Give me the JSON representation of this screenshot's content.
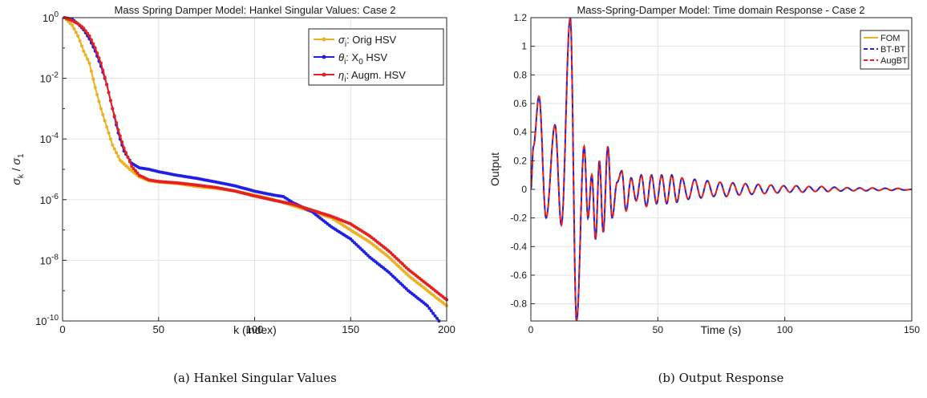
{
  "colors": {
    "orig": "#EDB120",
    "x0": "#1F1FE6",
    "augm": "#E61F1F"
  },
  "chart_data": [
    {
      "type": "line",
      "title": "Mass Spring Damper Model: Hankel Singular Values: Case 2",
      "xlabel": "k (index)",
      "ylabel": "σ_k / σ_1",
      "yscale": "log",
      "xlim": [
        0,
        200
      ],
      "ylim_exp": [
        -10,
        0
      ],
      "grid": true,
      "legend_position": "top-right",
      "x_ticks": [
        "0",
        "50",
        "100",
        "150",
        "200"
      ],
      "y_ticks": [
        {
          "base": "10",
          "exp": "0",
          "e": 0
        },
        {
          "base": "10",
          "exp": "-2",
          "e": -2
        },
        {
          "base": "10",
          "exp": "-4",
          "e": -4
        },
        {
          "base": "10",
          "exp": "-6",
          "e": -6
        },
        {
          "base": "10",
          "exp": "-8",
          "e": -8
        },
        {
          "base": "10",
          "exp": "-10",
          "e": -10
        }
      ],
      "series": [
        {
          "name": "σ_i: Orig HSV",
          "sym": "σ",
          "sub": "i",
          "rest": ": Orig HSV",
          "color_key": "orig",
          "knots": [
            [
              1,
              0
            ],
            [
              5,
              -0.25
            ],
            [
              8,
              -0.6
            ],
            [
              11,
              -1.1
            ],
            [
              14,
              -1.5
            ],
            [
              17,
              -2.3
            ],
            [
              20,
              -3.0
            ],
            [
              23,
              -3.6
            ],
            [
              26,
              -4.2
            ],
            [
              30,
              -4.7
            ],
            [
              35,
              -5.0
            ],
            [
              40,
              -5.25
            ],
            [
              45,
              -5.38
            ],
            [
              50,
              -5.42
            ],
            [
              60,
              -5.47
            ],
            [
              70,
              -5.57
            ],
            [
              80,
              -5.63
            ],
            [
              90,
              -5.72
            ],
            [
              100,
              -5.85
            ],
            [
              110,
              -6.0
            ],
            [
              120,
              -6.2
            ],
            [
              130,
              -6.4
            ],
            [
              140,
              -6.6
            ],
            [
              150,
              -7.0
            ],
            [
              160,
              -7.4
            ],
            [
              170,
              -7.9
            ],
            [
              180,
              -8.5
            ],
            [
              190,
              -9.0
            ],
            [
              200,
              -9.5
            ]
          ]
        },
        {
          "name": "θ_i: X_0 HSV",
          "sym": "θ",
          "sub": "i",
          "rest": ": X",
          "rest_sub": "0",
          "rest2": " HSV",
          "color_key": "x0",
          "knots": [
            [
              1,
              0
            ],
            [
              5,
              -0.05
            ],
            [
              8,
              -0.2
            ],
            [
              11,
              -0.4
            ],
            [
              14,
              -0.7
            ],
            [
              17,
              -1.1
            ],
            [
              20,
              -1.6
            ],
            [
              23,
              -2.2
            ],
            [
              26,
              -3.0
            ],
            [
              29,
              -3.8
            ],
            [
              32,
              -4.4
            ],
            [
              36,
              -4.8
            ],
            [
              40,
              -4.95
            ],
            [
              45,
              -5.0
            ],
            [
              50,
              -5.08
            ],
            [
              60,
              -5.2
            ],
            [
              70,
              -5.3
            ],
            [
              80,
              -5.42
            ],
            [
              90,
              -5.55
            ],
            [
              100,
              -5.72
            ],
            [
              110,
              -5.85
            ],
            [
              115,
              -5.9
            ],
            [
              120,
              -6.1
            ],
            [
              130,
              -6.4
            ],
            [
              140,
              -6.9
            ],
            [
              150,
              -7.3
            ],
            [
              160,
              -7.9
            ],
            [
              170,
              -8.4
            ],
            [
              180,
              -9.0
            ],
            [
              190,
              -9.5
            ],
            [
              196,
              -10
            ]
          ]
        },
        {
          "name": "η_i: Augm. HSV",
          "sym": "η",
          "sub": "i",
          "rest": ": Augm. HSV",
          "color_key": "augm",
          "knots": [
            [
              1,
              0
            ],
            [
              5,
              -0.1
            ],
            [
              8,
              -0.2
            ],
            [
              11,
              -0.35
            ],
            [
              14,
              -0.6
            ],
            [
              17,
              -1.0
            ],
            [
              20,
              -1.5
            ],
            [
              23,
              -2.2
            ],
            [
              26,
              -3.0
            ],
            [
              29,
              -3.7
            ],
            [
              32,
              -4.3
            ],
            [
              36,
              -4.9
            ],
            [
              40,
              -5.2
            ],
            [
              45,
              -5.35
            ],
            [
              50,
              -5.4
            ],
            [
              60,
              -5.45
            ],
            [
              70,
              -5.52
            ],
            [
              80,
              -5.6
            ],
            [
              90,
              -5.72
            ],
            [
              100,
              -5.88
            ],
            [
              110,
              -6.02
            ],
            [
              120,
              -6.15
            ],
            [
              130,
              -6.35
            ],
            [
              140,
              -6.55
            ],
            [
              150,
              -6.8
            ],
            [
              160,
              -7.2
            ],
            [
              170,
              -7.7
            ],
            [
              180,
              -8.3
            ],
            [
              190,
              -8.8
            ],
            [
              200,
              -9.3
            ]
          ]
        }
      ]
    },
    {
      "type": "line",
      "title": "Mass-Spring-Damper Model: Time domain Response - Case 2",
      "xlabel": "Time (s)",
      "ylabel": "Output",
      "xlim": [
        0,
        150
      ],
      "ylim": [
        -0.92,
        1.2
      ],
      "grid": true,
      "legend_position": "top-right",
      "x_ticks": [
        "0",
        "50",
        "100",
        "150"
      ],
      "y_ticks": [
        "-0.8",
        "-0.6",
        "-0.4",
        "-0.2",
        "0",
        "0.2",
        "0.4",
        "0.6",
        "0.8",
        "1",
        "1.2"
      ],
      "series": [
        {
          "name": "FOM",
          "color_key": "orig",
          "dash": false
        },
        {
          "name": "BT-BT",
          "color_key": "x0",
          "dash": true
        },
        {
          "name": "AugBT",
          "color_key": "augm",
          "dash": true
        }
      ],
      "peaks": [
        [
          0,
          0
        ],
        [
          1,
          0.3
        ],
        [
          3.2,
          0.65
        ],
        [
          6,
          -0.2
        ],
        [
          9.5,
          0.45
        ],
        [
          12,
          -0.25
        ],
        [
          15.5,
          1.2
        ],
        [
          18,
          -0.92
        ],
        [
          21,
          0.3
        ],
        [
          22.5,
          -0.2
        ],
        [
          24,
          0.1
        ],
        [
          25.5,
          -0.35
        ],
        [
          27,
          0.2
        ],
        [
          28.5,
          -0.3
        ],
        [
          30.3,
          0.3
        ],
        [
          32,
          -0.2
        ],
        [
          34,
          0.05
        ],
        [
          35.8,
          0.13
        ],
        [
          37.5,
          -0.15
        ],
        [
          39.5,
          0.08
        ],
        [
          41.5,
          -0.08
        ],
        [
          43.5,
          0.1
        ],
        [
          45.5,
          -0.12
        ],
        [
          47.5,
          0.1
        ],
        [
          49.5,
          -0.1
        ],
        [
          51.5,
          0.1
        ],
        [
          53.5,
          -0.1
        ],
        [
          55.5,
          0.1
        ],
        [
          57.5,
          -0.09
        ],
        [
          59.5,
          0.08
        ],
        [
          62,
          -0.07
        ],
        [
          64.5,
          0.07
        ],
        [
          67,
          -0.06
        ],
        [
          69.5,
          0.06
        ],
        [
          72,
          -0.05
        ],
        [
          74.5,
          0.05
        ],
        [
          77,
          -0.05
        ],
        [
          79.5,
          0.045
        ],
        [
          82,
          -0.04
        ],
        [
          84.5,
          0.04
        ],
        [
          87,
          -0.035
        ],
        [
          89.5,
          0.035
        ],
        [
          92,
          -0.03
        ],
        [
          94.5,
          0.03
        ],
        [
          97,
          -0.025
        ],
        [
          99.5,
          0.025
        ],
        [
          102,
          -0.02
        ],
        [
          104.5,
          0.025
        ],
        [
          107,
          -0.02
        ],
        [
          109.5,
          0.02
        ],
        [
          112,
          -0.015
        ],
        [
          114.5,
          0.02
        ],
        [
          117,
          -0.015
        ],
        [
          119.5,
          0.015
        ],
        [
          122,
          -0.012
        ],
        [
          124.5,
          0.012
        ],
        [
          127,
          -0.01
        ],
        [
          129.5,
          0.01
        ],
        [
          132,
          -0.01
        ],
        [
          134.5,
          0.01
        ],
        [
          137,
          -0.008
        ],
        [
          139.5,
          0.008
        ],
        [
          142,
          -0.007
        ],
        [
          144.5,
          0.007
        ],
        [
          147,
          -0.005
        ],
        [
          150,
          0
        ]
      ]
    }
  ],
  "captions": [
    "(a) Hankel Singular Values",
    "(b) Output Response"
  ]
}
